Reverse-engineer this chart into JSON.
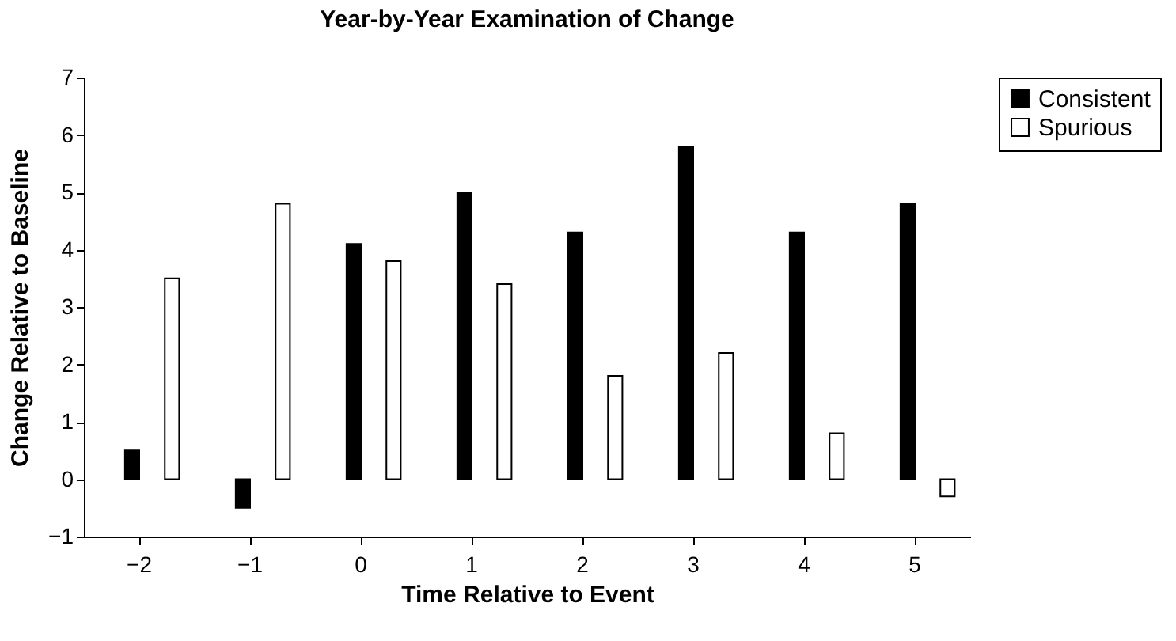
{
  "chart_data": {
    "type": "bar",
    "title": "Year-by-Year Examination of Change",
    "xlabel": "Time Relative to Event",
    "ylabel": "Change Relative to Baseline",
    "categories": [
      "−2",
      "−1",
      "0",
      "1",
      "2",
      "3",
      "4",
      "5"
    ],
    "series": [
      {
        "name": "Consistent",
        "color": "#000000",
        "values": [
          0.5,
          -0.5,
          4.1,
          5.0,
          4.3,
          5.8,
          4.3,
          4.8
        ]
      },
      {
        "name": "Spurious",
        "color": "#ffffff",
        "values": [
          3.5,
          4.8,
          3.8,
          3.4,
          1.8,
          2.2,
          0.8,
          -0.3
        ]
      }
    ],
    "ylim": [
      -1,
      7
    ],
    "yticks": [
      {
        "value": -1,
        "label": "−1"
      },
      0,
      1,
      2,
      3,
      4,
      5,
      6,
      7
    ],
    "grid": false,
    "legend": "right"
  }
}
